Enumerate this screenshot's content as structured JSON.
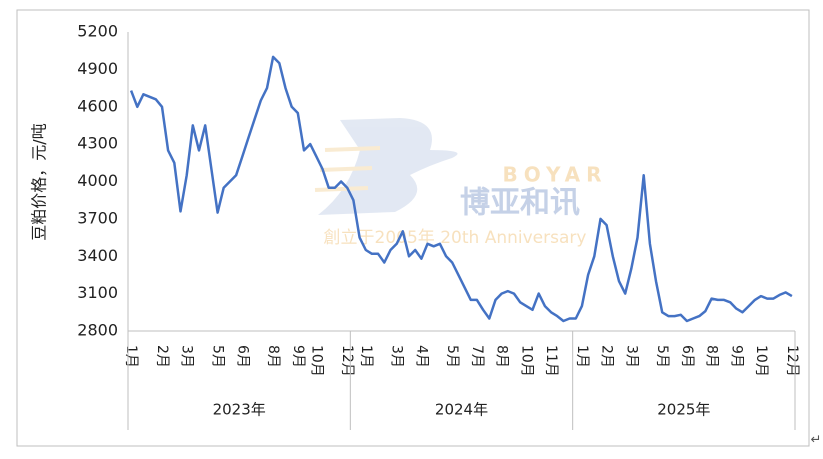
{
  "chart_data": {
    "type": "line",
    "y_label": "豆粕价格，元/吨",
    "categories": [
      "1月",
      null,
      null,
      null,
      null,
      "2月",
      null,
      null,
      null,
      "3月",
      null,
      null,
      null,
      null,
      "5月",
      null,
      null,
      null,
      "6月",
      null,
      null,
      null,
      null,
      "8月",
      null,
      null,
      null,
      "9月",
      null,
      null,
      "10月",
      null,
      null,
      null,
      null,
      "12月",
      null,
      null,
      "1月",
      null,
      null,
      null,
      null,
      "3月",
      null,
      null,
      null,
      "4月",
      null,
      null,
      null,
      null,
      "5月",
      null,
      null,
      null,
      "7月",
      null,
      null,
      null,
      "8月",
      null,
      null,
      null,
      "10月",
      null,
      null,
      null,
      "11月",
      null,
      null,
      null,
      null,
      "1月",
      null,
      null,
      null,
      "2月",
      null,
      null,
      null,
      "3月",
      null,
      null,
      null,
      null,
      "5月",
      null,
      null,
      null,
      "6月",
      null,
      null,
      null,
      "8月",
      null,
      null,
      null,
      "9月",
      null,
      null,
      null,
      "10月",
      null,
      null,
      null,
      null,
      "12月"
    ],
    "groups": [
      "2023年",
      "2024年",
      "2025年"
    ],
    "values": [
      4730,
      4600,
      4700,
      4680,
      4660,
      4600,
      4250,
      4150,
      3760,
      4050,
      4450,
      4250,
      4450,
      4100,
      3750,
      3950,
      4000,
      4050,
      4200,
      4350,
      4500,
      4650,
      4750,
      5000,
      4950,
      4750,
      4600,
      4550,
      4250,
      4300,
      4200,
      4100,
      3950,
      3950,
      4000,
      3950,
      3850,
      3550,
      3450,
      3420,
      3420,
      3350,
      3450,
      3500,
      3600,
      3400,
      3450,
      3380,
      3500,
      3480,
      3500,
      3400,
      3350,
      3250,
      3150,
      3050,
      3050,
      2970,
      2900,
      3050,
      3100,
      3120,
      3100,
      3030,
      3000,
      2970,
      3100,
      3000,
      2950,
      2920,
      2880,
      2900,
      2900,
      3000,
      3250,
      3400,
      3700,
      3650,
      3400,
      3200,
      3100,
      3300,
      3550,
      4050,
      3500,
      3200,
      2950,
      2920,
      2920,
      2930,
      2880,
      2900,
      2920,
      2960,
      3060,
      3050,
      3050,
      3030,
      2980,
      2950,
      3000,
      3050,
      3080,
      3060,
      3060,
      3090,
      3110,
      3080
    ],
    "color": "#4472c4",
    "ylim": [
      2800,
      5200
    ],
    "yticks": [
      2800,
      3100,
      3400,
      3700,
      4000,
      4300,
      4600,
      4900,
      5200
    ],
    "grid": false
  },
  "watermark": {
    "brand": "BOYAR",
    "name": "博亚和讯",
    "slogan": "創立于2005年 20th Anniversary"
  },
  "paragraph_mark": "↵"
}
